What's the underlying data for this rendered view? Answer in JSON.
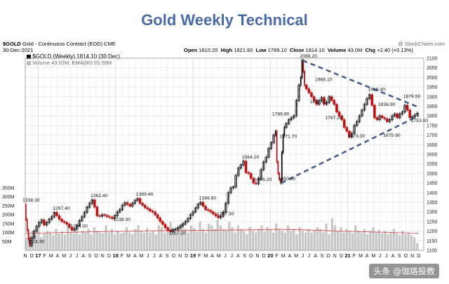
{
  "title": "Gold Weekly Technical",
  "header": {
    "symbol": "$GOLD",
    "description": "Gold - Continuous Contract (EOD) CME",
    "date": "30-Dec-2021",
    "source": "@ StockCharts.com",
    "quote_items": [
      {
        "label": "Open",
        "value": "1810.20"
      },
      {
        "label": "High",
        "value": "1821.60"
      },
      {
        "label": "Low",
        "value": "1789.10"
      },
      {
        "label": "Close",
        "value": "1814.10"
      },
      {
        "label": "Volume",
        "value": "43.0M"
      },
      {
        "label": "Chg",
        "value": "+2.40 (+0.13%)"
      }
    ],
    "legend_price": "$GOLD (Weekly) 1814.10 (30 Dec)",
    "legend_volume": "Volume 43.03M, EMA(60) 95.59M"
  },
  "watermark": "头条 @珈珞投教",
  "colors": {
    "title": "#4a6aa8",
    "up": "#000000",
    "down": "#cc1010",
    "volume_bar": "#c8c8c8",
    "volume_ema": "#d25050",
    "trendline": "#4a5e8c",
    "grid": "#dcdcdc"
  },
  "chart_data": {
    "type": "line",
    "x_tick_labels": [
      "N",
      "D",
      "17",
      "F",
      "M",
      "A",
      "M",
      "J",
      "J",
      "A",
      "S",
      "O",
      "N",
      "D",
      "18",
      "F",
      "M",
      "A",
      "M",
      "J",
      "J",
      "A",
      "S",
      "O",
      "N",
      "D",
      "19",
      "F",
      "M",
      "A",
      "M",
      "J",
      "J",
      "A",
      "S",
      "O",
      "N",
      "D",
      "20",
      "F",
      "M",
      "A",
      "M",
      "J",
      "J",
      "A",
      "S",
      "O",
      "N",
      "D",
      "21",
      "F",
      "M",
      "A",
      "M",
      "J",
      "J",
      "A",
      "S",
      "O",
      "N",
      "D"
    ],
    "y_ticks": [
      1100,
      1150,
      1200,
      1250,
      1300,
      1350,
      1400,
      1450,
      1500,
      1550,
      1600,
      1650,
      1700,
      1750,
      1800,
      1850,
      1900,
      1950,
      2000,
      2050,
      2100
    ],
    "ylim": [
      1100,
      2100
    ],
    "volume_ticks": [
      "350M",
      "300M",
      "250M",
      "200M",
      "150M",
      "100M",
      "50M"
    ],
    "volume_ylim": [
      0,
      350
    ],
    "price_series": [
      [
        0,
        1338.3
      ],
      [
        1,
        1260
      ],
      [
        2,
        1205
      ],
      [
        3,
        1160
      ],
      [
        4,
        1124.3
      ],
      [
        6,
        1165
      ],
      [
        8,
        1200
      ],
      [
        10,
        1225
      ],
      [
        12,
        1245
      ],
      [
        14,
        1258
      ],
      [
        16,
        1232
      ],
      [
        18,
        1245
      ],
      [
        20,
        1262
      ],
      [
        22,
        1275
      ],
      [
        24,
        1297.4
      ],
      [
        26,
        1280
      ],
      [
        28,
        1262
      ],
      [
        30,
        1250
      ],
      [
        32,
        1245
      ],
      [
        34,
        1236
      ],
      [
        36,
        1220
      ],
      [
        38,
        1205
      ],
      [
        40,
        1212
      ],
      [
        42,
        1230
      ],
      [
        44,
        1255
      ],
      [
        46,
        1275
      ],
      [
        48,
        1298
      ],
      [
        50,
        1325
      ],
      [
        52,
        1345
      ],
      [
        54,
        1362.4
      ],
      [
        56,
        1325
      ],
      [
        58,
        1280
      ],
      [
        60,
        1278
      ],
      [
        62,
        1285
      ],
      [
        64,
        1282
      ],
      [
        66,
        1275
      ],
      [
        68,
        1272
      ],
      [
        70,
        1265
      ],
      [
        72,
        1280
      ],
      [
        74,
        1300
      ],
      [
        76,
        1312
      ],
      [
        78,
        1335
      ],
      [
        80,
        1348
      ],
      [
        82,
        1340
      ],
      [
        84,
        1330
      ],
      [
        86,
        1345
      ],
      [
        88,
        1360
      ],
      [
        90,
        1369.4
      ],
      [
        92,
        1345
      ],
      [
        94,
        1335
      ],
      [
        96,
        1322
      ],
      [
        98,
        1315
      ],
      [
        100,
        1305
      ],
      [
        102,
        1300
      ],
      [
        104,
        1285
      ],
      [
        106,
        1268
      ],
      [
        108,
        1250
      ],
      [
        110,
        1235
      ],
      [
        112,
        1218
      ],
      [
        114,
        1205
      ],
      [
        116,
        1198
      ],
      [
        118,
        1208
      ],
      [
        120,
        1210
      ],
      [
        122,
        1218
      ],
      [
        124,
        1228
      ],
      [
        126,
        1238
      ],
      [
        128,
        1250
      ],
      [
        130,
        1265
      ],
      [
        132,
        1285
      ],
      [
        134,
        1300
      ],
      [
        136,
        1320
      ],
      [
        138,
        1340
      ],
      [
        140,
        1349.8
      ],
      [
        142,
        1330
      ],
      [
        144,
        1312
      ],
      [
        146,
        1308
      ],
      [
        148,
        1300
      ],
      [
        150,
        1290
      ],
      [
        152,
        1280
      ],
      [
        154,
        1270
      ],
      [
        156,
        1278
      ],
      [
        158,
        1300
      ],
      [
        160,
        1345
      ],
      [
        162,
        1400
      ],
      [
        164,
        1425
      ],
      [
        166,
        1430
      ],
      [
        168,
        1490
      ],
      [
        170,
        1528
      ],
      [
        172,
        1545
      ],
      [
        174,
        1564.2
      ],
      [
        176,
        1505
      ],
      [
        178,
        1500
      ],
      [
        180,
        1475
      ],
      [
        182,
        1450
      ],
      [
        184,
        1446.2
      ],
      [
        186,
        1475
      ],
      [
        188,
        1520
      ],
      [
        190,
        1560
      ],
      [
        192,
        1585
      ],
      [
        194,
        1630
      ],
      [
        196,
        1660
      ],
      [
        198,
        1700
      ],
      [
        199,
        1720
      ],
      [
        200,
        1560
      ],
      [
        201,
        1500
      ],
      [
        202,
        1470
      ],
      [
        203,
        1450.9
      ],
      [
        204,
        1610
      ],
      [
        205,
        1700
      ],
      [
        206,
        1740
      ],
      [
        208,
        1760
      ],
      [
        210,
        1780
      ],
      [
        212,
        1790
      ],
      [
        214,
        1800
      ],
      [
        216,
        1880
      ],
      [
        218,
        1960
      ],
      [
        219,
        2000
      ],
      [
        220,
        2088.2
      ],
      [
        221,
        2030
      ],
      [
        222,
        1960
      ],
      [
        224,
        1940
      ],
      [
        226,
        1920
      ],
      [
        228,
        1900
      ],
      [
        230,
        1880
      ],
      [
        232,
        1860
      ],
      [
        234,
        1880
      ],
      [
        236,
        1895
      ],
      [
        238,
        1860
      ],
      [
        240,
        1870
      ],
      [
        242,
        1900
      ],
      [
        244,
        1880
      ],
      [
        246,
        1860
      ],
      [
        248,
        1820
      ],
      [
        250,
        1800
      ],
      [
        252,
        1780
      ],
      [
        254,
        1740
      ],
      [
        256,
        1720
      ],
      [
        258,
        1690
      ],
      [
        260,
        1710
      ],
      [
        262,
        1750
      ],
      [
        264,
        1770
      ],
      [
        266,
        1800
      ],
      [
        268,
        1830
      ],
      [
        270,
        1860
      ],
      [
        272,
        1890
      ],
      [
        274,
        1910
      ],
      [
        276,
        1855
      ],
      [
        278,
        1790
      ],
      [
        280,
        1780
      ],
      [
        282,
        1800
      ],
      [
        284,
        1790
      ],
      [
        286,
        1785
      ],
      [
        288,
        1770
      ],
      [
        290,
        1780
      ],
      [
        292,
        1800
      ],
      [
        294,
        1810
      ],
      [
        296,
        1790
      ],
      [
        298,
        1810
      ],
      [
        300,
        1820
      ],
      [
        302,
        1855
      ],
      [
        304,
        1830
      ],
      [
        306,
        1790
      ],
      [
        308,
        1795
      ],
      [
        310,
        1805
      ],
      [
        312,
        1814.1
      ]
    ],
    "volume_series": [
      70,
      90,
      110,
      85,
      130,
      75,
      95,
      110,
      100,
      85,
      120,
      95,
      105,
      90,
      140,
      100,
      95,
      120,
      90,
      110,
      100,
      120,
      90,
      130,
      110,
      100,
      95,
      140,
      100,
      120,
      90,
      110,
      95,
      100,
      130,
      100,
      90,
      120,
      140,
      110,
      100,
      125,
      100,
      110,
      90,
      140,
      130,
      100,
      120,
      160,
      110,
      100,
      130,
      150,
      120,
      100,
      140,
      125,
      105,
      160,
      120,
      100,
      150,
      140,
      120,
      170,
      140,
      120,
      110,
      160,
      130,
      100,
      140,
      120,
      110,
      90,
      130,
      110,
      100,
      120,
      140,
      105,
      130,
      120,
      100,
      150,
      120,
      110,
      100,
      140,
      110,
      120,
      90,
      130,
      110,
      100,
      120,
      100,
      110,
      130,
      120,
      100,
      150,
      90,
      180,
      140,
      110,
      130,
      100,
      120,
      110,
      95,
      140,
      110,
      100,
      120,
      90,
      110,
      130,
      100,
      115,
      95,
      110,
      90,
      100,
      120,
      95,
      85,
      110,
      90,
      100,
      85,
      75,
      40
    ],
    "volume_ema_series": [
      [
        0,
        95
      ],
      [
        30,
        100
      ],
      [
        60,
        105
      ],
      [
        100,
        110
      ],
      [
        140,
        112
      ],
      [
        180,
        115
      ],
      [
        200,
        118
      ],
      [
        220,
        115
      ],
      [
        250,
        108
      ],
      [
        280,
        102
      ],
      [
        312,
        95.59
      ]
    ],
    "annotations": [
      {
        "label": "1338.30",
        "x": 0,
        "y": 1338.3
      },
      {
        "label": "1124.30",
        "x": 4,
        "y": 1124.3
      },
      {
        "label": "1297.40",
        "x": 24,
        "y": 1297.4
      },
      {
        "label": "1204.00",
        "x": 38,
        "y": 1204.0
      },
      {
        "label": "1362.40",
        "x": 54,
        "y": 1362.4
      },
      {
        "label": "1238.30",
        "x": 72,
        "y": 1238.3
      },
      {
        "label": "1369.40",
        "x": 90,
        "y": 1369.4
      },
      {
        "label": "1167.10",
        "x": 116,
        "y": 1167.1
      },
      {
        "label": "1349.80",
        "x": 140,
        "y": 1349.8
      },
      {
        "label": "1267.30",
        "x": 154,
        "y": 1267.3
      },
      {
        "label": "1564.20",
        "x": 174,
        "y": 1564.2
      },
      {
        "label": "1446.20",
        "x": 184,
        "y": 1446.2
      },
      {
        "label": "1788.80",
        "x": 198,
        "y": 1788.8
      },
      {
        "label": "1450.90",
        "x": 203,
        "y": 1450.9
      },
      {
        "label": "1671.70",
        "x": 204,
        "y": 1671.7
      },
      {
        "label": "2088.20",
        "x": 220,
        "y": 2088.2
      },
      {
        "label": "1966.10",
        "x": 232,
        "y": 1966.1
      },
      {
        "label": "1851.00",
        "x": 228,
        "y": 1851.0
      },
      {
        "label": "1767.20",
        "x": 240,
        "y": 1767.2
      },
      {
        "label": "1673.30",
        "x": 258,
        "y": 1673.3
      },
      {
        "label": "1916.40",
        "x": 274,
        "y": 1916.4
      },
      {
        "label": "1836.90",
        "x": 282,
        "y": 1836.9
      },
      {
        "label": "1675.90",
        "x": 286,
        "y": 1675.9
      },
      {
        "label": "1879.50",
        "x": 302,
        "y": 1879.5
      },
      {
        "label": "1753.00",
        "x": 308,
        "y": 1753.0
      }
    ],
    "trendlines": [
      {
        "name": "upper",
        "points": [
          [
            220,
            2088.2
          ],
          [
            312,
            1845
          ]
        ]
      },
      {
        "name": "lower",
        "points": [
          [
            203,
            1450.9
          ],
          [
            312,
            1800
          ]
        ]
      }
    ]
  }
}
